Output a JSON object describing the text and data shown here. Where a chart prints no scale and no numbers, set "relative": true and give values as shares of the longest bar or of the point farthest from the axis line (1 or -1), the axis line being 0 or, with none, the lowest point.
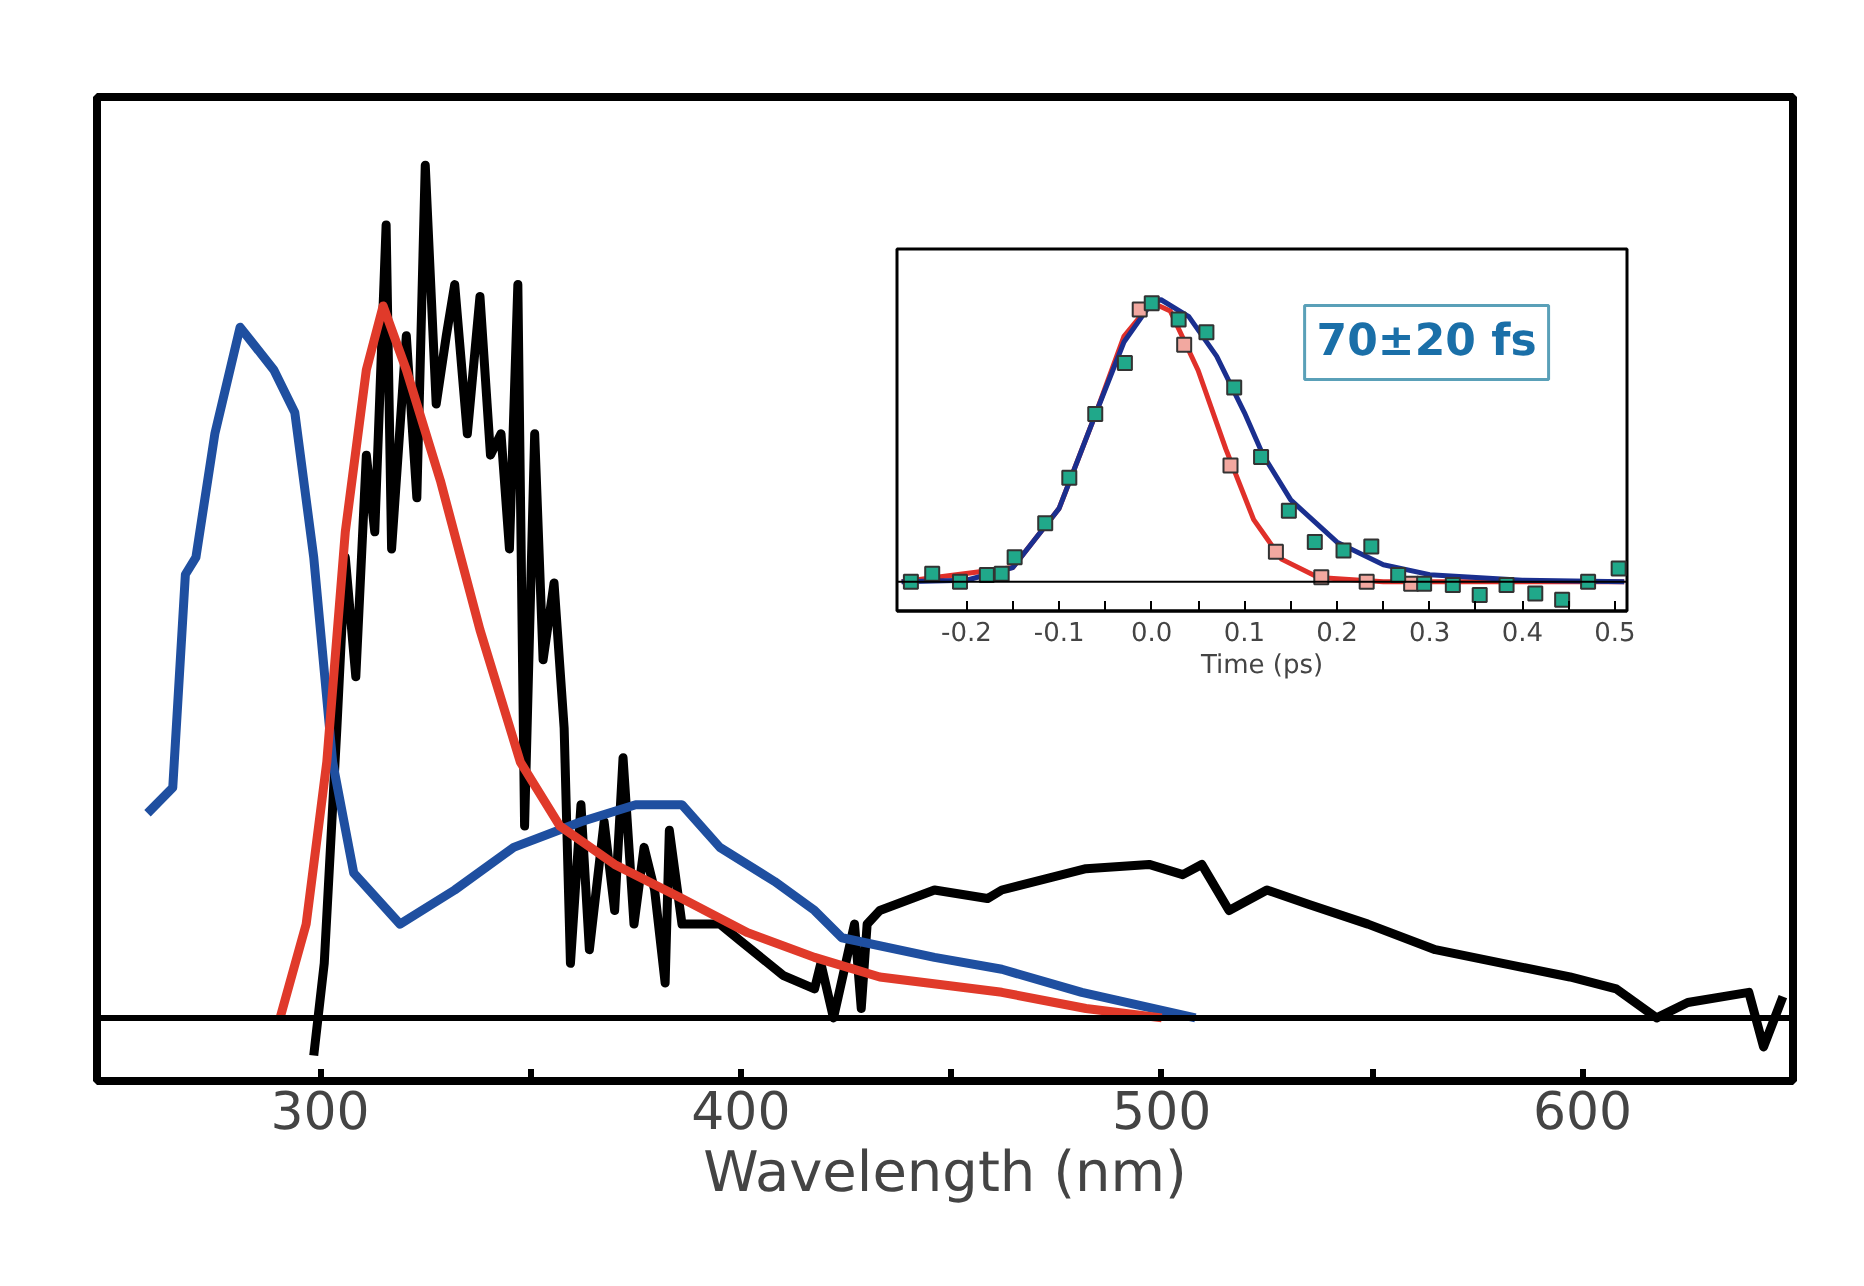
{
  "chart_data": [
    {
      "type": "line",
      "xlabel": "Wavelength (nm)",
      "relative": true,
      "xlim": [
        247,
        650
      ],
      "xticks": [
        300,
        {
          "value": 350,
          "label": null
        },
        400,
        {
          "value": 450,
          "label": null
        },
        500,
        {
          "value": 550,
          "label": null
        },
        600
      ],
      "tick_labels": "x",
      "grid": false,
      "line_style": "solid",
      "series": [
        {
          "color": "#000000",
          "x": [
            298.5,
            301,
            304,
            306,
            308.5,
            311,
            313,
            315.7,
            317,
            320.5,
            323,
            325,
            327.6,
            330,
            332,
            335,
            338,
            340.5,
            343,
            345,
            347,
            348.6,
            351,
            353,
            355.6,
            358,
            359.5,
            362,
            364,
            367.5,
            370,
            372,
            374.6,
            377,
            379.5,
            382,
            383,
            386,
            395,
            400,
            410,
            417.5,
            419,
            422,
            427,
            428.6,
            430,
            433,
            446,
            458.6,
            462,
            482,
            497,
            505,
            509.5,
            516,
            525,
            535,
            549,
            565,
            581,
            597,
            608,
            617.6,
            625,
            639.5,
            643,
            647.6
          ],
          "values": [
            -0.044,
            0.064,
            0.34,
            0.54,
            0.4,
            0.66,
            0.57,
            0.93,
            0.55,
            0.8,
            0.61,
            1.0,
            0.72,
            0.8,
            0.86,
            0.685,
            0.846,
            0.66,
            0.685,
            0.55,
            0.86,
            0.225,
            0.685,
            0.42,
            0.51,
            0.34,
            0.064,
            0.25,
            0.08,
            0.23,
            0.126,
            0.305,
            0.11,
            0.2,
            0.15,
            0.041,
            0.22,
            0.11,
            0.11,
            0.09,
            0.05,
            0.034,
            0.064,
            0.0,
            0.11,
            0.011,
            0.11,
            0.126,
            0.15,
            0.14,
            0.15,
            0.175,
            0.18,
            0.168,
            0.18,
            0.126,
            0.15,
            0.133,
            0.11,
            0.08,
            0.064,
            0.048,
            0.034,
            0.0,
            0.018,
            0.03,
            -0.034,
            0.025
          ]
        },
        {
          "color": "#1f4fa0",
          "x": [
            259,
            265,
            268,
            270.5,
            275,
            281,
            289,
            294,
            298.5,
            303,
            308,
            319,
            332,
            346,
            362,
            375,
            386,
            395,
            408,
            417.5,
            424,
            446,
            462,
            481,
            508
          ],
          "values": [
            0.24,
            0.27,
            0.52,
            0.54,
            0.685,
            0.81,
            0.76,
            0.71,
            0.54,
            0.3,
            0.17,
            0.11,
            0.15,
            0.2,
            0.23,
            0.25,
            0.25,
            0.2,
            0.16,
            0.126,
            0.094,
            0.071,
            0.057,
            0.03,
            0.0
          ]
        },
        {
          "color": "#e03a2a",
          "x": [
            290.5,
            296.7,
            301.6,
            306,
            311,
            315,
            320.5,
            328.6,
            338,
            347.6,
            357,
            370,
            386,
            401.6,
            417.5,
            433,
            462,
            482,
            500
          ],
          "values": [
            0.0,
            0.11,
            0.3,
            0.57,
            0.76,
            0.835,
            0.76,
            0.63,
            0.455,
            0.3,
            0.225,
            0.18,
            0.14,
            0.1,
            0.071,
            0.048,
            0.03,
            0.011,
            0.0
          ]
        }
      ]
    },
    {
      "type": "line",
      "xlabel": "Time (ps)",
      "relative": true,
      "xlim": [
        -0.275,
        0.513
      ],
      "xticks": [
        -0.2,
        {
          "value": -0.15,
          "label": null
        },
        -0.1,
        {
          "value": -0.05,
          "label": null
        },
        {
          "value": 0,
          "label": "0.0"
        },
        {
          "value": 0.05,
          "label": null
        },
        0.1,
        {
          "value": 0.15,
          "label": null
        },
        0.2,
        {
          "value": 0.25,
          "label": null
        },
        0.3,
        {
          "value": 0.35,
          "label": null
        },
        0.4,
        {
          "value": 0.45,
          "label": null
        },
        0.5
      ],
      "tick_labels": "x",
      "grid": false,
      "annotations": [
        "70±20 fs"
      ],
      "series": [
        {
          "color": "#e0302a",
          "x": [
            -0.27,
            -0.15,
            -0.1,
            -0.06,
            -0.03,
            0.0,
            0.02,
            0.05,
            0.08,
            0.11,
            0.14,
            0.18,
            0.25,
            0.51
          ],
          "values": [
            0.0,
            0.05,
            0.26,
            0.6,
            0.87,
            0.99,
            0.96,
            0.75,
            0.47,
            0.22,
            0.08,
            0.015,
            0.0,
            0.0
          ]
        },
        {
          "color": "#1a2f8f",
          "x": [
            -0.27,
            -0.2,
            -0.15,
            -0.1,
            -0.06,
            -0.03,
            0.0,
            0.01,
            0.04,
            0.07,
            0.1,
            0.12,
            0.15,
            0.2,
            0.25,
            0.3,
            0.4,
            0.51
          ],
          "values": [
            0.0,
            0.005,
            0.05,
            0.26,
            0.6,
            0.85,
            0.99,
            1.0,
            0.94,
            0.8,
            0.6,
            0.45,
            0.29,
            0.14,
            0.06,
            0.025,
            0.005,
            0.0
          ]
        },
        {
          "type": "scatter",
          "marker": "square",
          "color": "#f2a8a0",
          "x": [
            -0.013,
            0.035,
            0.085,
            0.134,
            0.183,
            0.232,
            0.28
          ],
          "values": [
            0.965,
            0.84,
            0.412,
            0.106,
            0.016,
            0.0,
            -0.007
          ]
        },
        {
          "type": "scatter",
          "marker": "square",
          "color": "#20a88a",
          "x": [
            -0.26,
            -0.237,
            -0.207,
            -0.178,
            -0.162,
            -0.148,
            -0.115,
            -0.089,
            -0.061,
            -0.029,
            0.0,
            0.029,
            0.059,
            0.089,
            0.118,
            0.148,
            0.176,
            0.207,
            0.237,
            0.266,
            0.294,
            0.325,
            0.354,
            0.383,
            0.414,
            0.443,
            0.471,
            0.504
          ],
          "values": [
            0.0,
            0.028,
            0.0,
            0.024,
            0.028,
            0.087,
            0.207,
            0.369,
            0.595,
            0.776,
            0.988,
            0.93,
            0.885,
            0.689,
            0.442,
            0.252,
            0.141,
            0.111,
            0.125,
            0.024,
            -0.007,
            -0.012,
            -0.047,
            -0.012,
            -0.042,
            -0.064,
            0.0,
            0.047
          ]
        }
      ]
    }
  ]
}
